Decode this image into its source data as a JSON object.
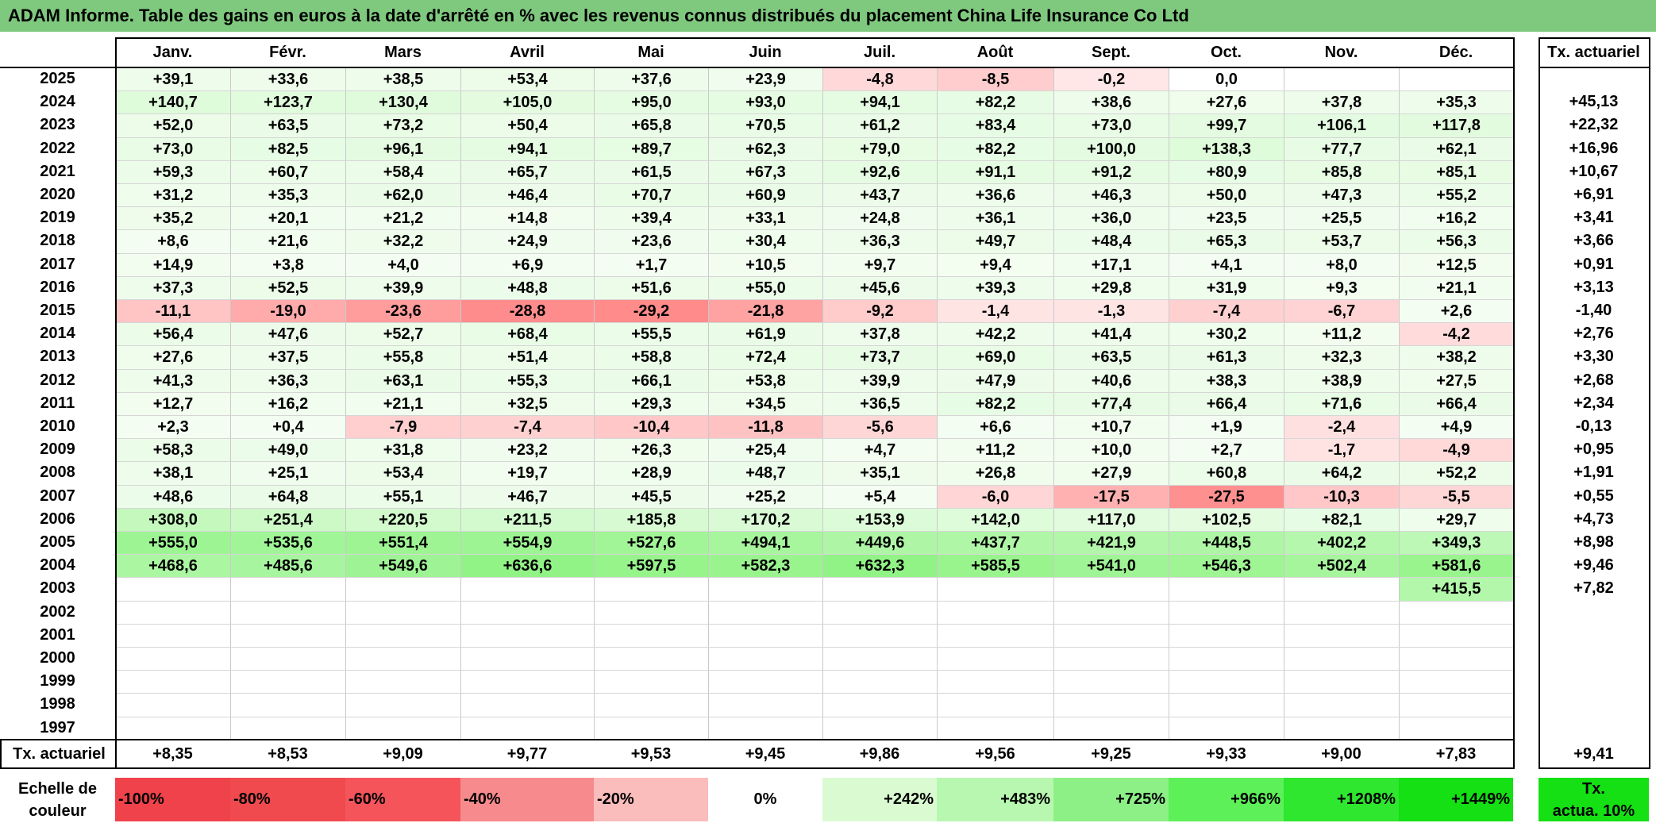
{
  "title": "ADAM Informe. Table des gains en euros à la date d'arrêté en % avec les revenus connus distribués du placement China Life Insurance Co Ltd",
  "months": [
    "Janv.",
    "Févr.",
    "Mars",
    "Avril",
    "Mai",
    "Juin",
    "Juil.",
    "Août",
    "Sept.",
    "Oct.",
    "Nov.",
    "Déc."
  ],
  "actuarial_header": "Tx. actuariel",
  "rows": [
    {
      "year": "2025",
      "values": [
        "+39,1",
        "+33,6",
        "+38,5",
        "+53,4",
        "+37,6",
        "+23,9",
        "-4,8",
        "-8,5",
        "-0,2",
        "0,0",
        "",
        ""
      ],
      "rate": ""
    },
    {
      "year": "2024",
      "values": [
        "+140,7",
        "+123,7",
        "+130,4",
        "+105,0",
        "+95,0",
        "+93,0",
        "+94,1",
        "+82,2",
        "+38,6",
        "+27,6",
        "+37,8",
        "+35,3"
      ],
      "rate": "+45,13"
    },
    {
      "year": "2023",
      "values": [
        "+52,0",
        "+63,5",
        "+73,2",
        "+50,4",
        "+65,8",
        "+70,5",
        "+61,2",
        "+83,4",
        "+73,0",
        "+99,7",
        "+106,1",
        "+117,8"
      ],
      "rate": "+22,32"
    },
    {
      "year": "2022",
      "values": [
        "+73,0",
        "+82,5",
        "+96,1",
        "+94,1",
        "+89,7",
        "+62,3",
        "+79,0",
        "+82,2",
        "+100,0",
        "+138,3",
        "+77,7",
        "+62,1"
      ],
      "rate": "+16,96"
    },
    {
      "year": "2021",
      "values": [
        "+59,3",
        "+60,7",
        "+58,4",
        "+65,7",
        "+61,5",
        "+67,3",
        "+92,6",
        "+91,1",
        "+91,2",
        "+80,9",
        "+85,8",
        "+85,1"
      ],
      "rate": "+10,67"
    },
    {
      "year": "2020",
      "values": [
        "+31,2",
        "+35,3",
        "+62,0",
        "+46,4",
        "+70,7",
        "+60,9",
        "+43,7",
        "+36,6",
        "+46,3",
        "+50,0",
        "+47,3",
        "+55,2"
      ],
      "rate": "+6,91"
    },
    {
      "year": "2019",
      "values": [
        "+35,2",
        "+20,1",
        "+21,2",
        "+14,8",
        "+39,4",
        "+33,1",
        "+24,8",
        "+36,1",
        "+36,0",
        "+23,5",
        "+25,5",
        "+16,2"
      ],
      "rate": "+3,41"
    },
    {
      "year": "2018",
      "values": [
        "+8,6",
        "+21,6",
        "+32,2",
        "+24,9",
        "+23,6",
        "+30,4",
        "+36,3",
        "+49,7",
        "+48,4",
        "+65,3",
        "+53,7",
        "+56,3"
      ],
      "rate": "+3,66"
    },
    {
      "year": "2017",
      "values": [
        "+14,9",
        "+3,8",
        "+4,0",
        "+6,9",
        "+1,7",
        "+10,5",
        "+9,7",
        "+9,4",
        "+17,1",
        "+4,1",
        "+8,0",
        "+12,5"
      ],
      "rate": "+0,91"
    },
    {
      "year": "2016",
      "values": [
        "+37,3",
        "+52,5",
        "+39,9",
        "+48,8",
        "+51,6",
        "+55,0",
        "+45,6",
        "+39,3",
        "+29,8",
        "+31,9",
        "+9,3",
        "+21,1"
      ],
      "rate": "+3,13"
    },
    {
      "year": "2015",
      "values": [
        "-11,1",
        "-19,0",
        "-23,6",
        "-28,8",
        "-29,2",
        "-21,8",
        "-9,2",
        "-1,4",
        "-1,3",
        "-7,4",
        "-6,7",
        "+2,6"
      ],
      "rate": "-1,40"
    },
    {
      "year": "2014",
      "values": [
        "+56,4",
        "+47,6",
        "+52,7",
        "+68,4",
        "+55,5",
        "+61,9",
        "+37,8",
        "+42,2",
        "+41,4",
        "+30,2",
        "+11,2",
        "-4,2"
      ],
      "rate": "+2,76"
    },
    {
      "year": "2013",
      "values": [
        "+27,6",
        "+37,5",
        "+55,8",
        "+51,4",
        "+58,8",
        "+72,4",
        "+73,7",
        "+69,0",
        "+63,5",
        "+61,3",
        "+32,3",
        "+38,2"
      ],
      "rate": "+3,30"
    },
    {
      "year": "2012",
      "values": [
        "+41,3",
        "+36,3",
        "+63,1",
        "+55,3",
        "+66,1",
        "+53,8",
        "+39,9",
        "+47,9",
        "+40,6",
        "+38,3",
        "+38,9",
        "+27,5"
      ],
      "rate": "+2,68"
    },
    {
      "year": "2011",
      "values": [
        "+12,7",
        "+16,2",
        "+21,1",
        "+32,5",
        "+29,3",
        "+34,5",
        "+36,5",
        "+82,2",
        "+77,4",
        "+66,4",
        "+71,6",
        "+66,4"
      ],
      "rate": "+2,34"
    },
    {
      "year": "2010",
      "values": [
        "+2,3",
        "+0,4",
        "-7,9",
        "-7,4",
        "-10,4",
        "-11,8",
        "-5,6",
        "+6,6",
        "+10,7",
        "+1,9",
        "-2,4",
        "+4,9"
      ],
      "rate": "-0,13"
    },
    {
      "year": "2009",
      "values": [
        "+58,3",
        "+49,0",
        "+31,8",
        "+23,2",
        "+26,3",
        "+25,4",
        "+4,7",
        "+11,2",
        "+10,0",
        "+2,7",
        "-1,7",
        "-4,9"
      ],
      "rate": "+0,95"
    },
    {
      "year": "2008",
      "values": [
        "+38,1",
        "+25,1",
        "+53,4",
        "+19,7",
        "+28,9",
        "+48,7",
        "+35,1",
        "+26,8",
        "+27,9",
        "+60,8",
        "+64,2",
        "+52,2"
      ],
      "rate": "+1,91"
    },
    {
      "year": "2007",
      "values": [
        "+48,6",
        "+64,8",
        "+55,1",
        "+46,7",
        "+45,5",
        "+25,2",
        "+5,4",
        "-6,0",
        "-17,5",
        "-27,5",
        "-10,3",
        "-5,5"
      ],
      "rate": "+0,55"
    },
    {
      "year": "2006",
      "values": [
        "+308,0",
        "+251,4",
        "+220,5",
        "+211,5",
        "+185,8",
        "+170,2",
        "+153,9",
        "+142,0",
        "+117,0",
        "+102,5",
        "+82,1",
        "+29,7"
      ],
      "rate": "+4,73"
    },
    {
      "year": "2005",
      "values": [
        "+555,0",
        "+535,6",
        "+551,4",
        "+554,9",
        "+527,6",
        "+494,1",
        "+449,6",
        "+437,7",
        "+421,9",
        "+448,5",
        "+402,2",
        "+349,3"
      ],
      "rate": "+8,98"
    },
    {
      "year": "2004",
      "values": [
        "+468,6",
        "+485,6",
        "+549,6",
        "+636,6",
        "+597,5",
        "+582,3",
        "+632,3",
        "+585,5",
        "+541,0",
        "+546,3",
        "+502,4",
        "+581,6"
      ],
      "rate": "+9,46"
    },
    {
      "year": "2003",
      "values": [
        "",
        "",
        "",
        "",
        "",
        "",
        "",
        "",
        "",
        "",
        "",
        "+415,5"
      ],
      "rate": "+7,82"
    },
    {
      "year": "2002",
      "values": [
        "",
        "",
        "",
        "",
        "",
        "",
        "",
        "",
        "",
        "",
        "",
        ""
      ],
      "rate": ""
    },
    {
      "year": "2001",
      "values": [
        "",
        "",
        "",
        "",
        "",
        "",
        "",
        "",
        "",
        "",
        "",
        ""
      ],
      "rate": ""
    },
    {
      "year": "2000",
      "values": [
        "",
        "",
        "",
        "",
        "",
        "",
        "",
        "",
        "",
        "",
        "",
        ""
      ],
      "rate": ""
    },
    {
      "year": "1999",
      "values": [
        "",
        "",
        "",
        "",
        "",
        "",
        "",
        "",
        "",
        "",
        "",
        ""
      ],
      "rate": ""
    },
    {
      "year": "1998",
      "values": [
        "",
        "",
        "",
        "",
        "",
        "",
        "",
        "",
        "",
        "",
        "",
        ""
      ],
      "rate": ""
    },
    {
      "year": "1997",
      "values": [
        "",
        "",
        "",
        "",
        "",
        "",
        "",
        "",
        "",
        "",
        "",
        ""
      ],
      "rate": ""
    }
  ],
  "footer": {
    "label": "Tx. actuariel",
    "values": [
      "+8,35",
      "+8,53",
      "+9,09",
      "+9,77",
      "+9,53",
      "+9,45",
      "+9,86",
      "+9,56",
      "+9,25",
      "+9,33",
      "+9,00",
      "+7,83"
    ],
    "total": "+9,41"
  },
  "scale": {
    "label_line1": "Echelle de",
    "label_line2": "couleur",
    "steps": [
      {
        "text": "-100%",
        "color": "#f0424a",
        "align": "left"
      },
      {
        "text": "-80%",
        "color": "#f04a4e",
        "align": "left"
      },
      {
        "text": "-60%",
        "color": "#f4545a",
        "align": "left"
      },
      {
        "text": "-40%",
        "color": "#f78a8c",
        "align": "left"
      },
      {
        "text": "-20%",
        "color": "#fbbcbc",
        "align": "left"
      },
      {
        "text": "0%",
        "color": "#ffffff",
        "align": "center"
      },
      {
        "text": "+242%",
        "color": "#dafbd2",
        "align": "right"
      },
      {
        "text": "+483%",
        "color": "#b8f7b0",
        "align": "right"
      },
      {
        "text": "+725%",
        "color": "#8cf087",
        "align": "right"
      },
      {
        "text": "+966%",
        "color": "#5df058",
        "align": "right"
      },
      {
        "text": "+1208%",
        "color": "#2ee72e",
        "align": "right"
      },
      {
        "text": "+1449%",
        "color": "#14e014",
        "align": "right"
      }
    ],
    "final_line1": "Tx.",
    "final_line2": "actua. 10%",
    "final_color": "#14e014"
  },
  "colors": {
    "title_bar": "#7fc97f",
    "positive_base": "#f3fcf1",
    "negative_base": "#ffe6e6"
  }
}
